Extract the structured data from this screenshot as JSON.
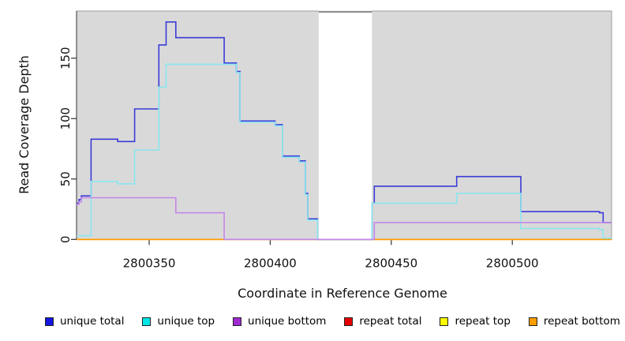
{
  "chart_data": {
    "type": "line",
    "subtype": "step-coverage",
    "title": "",
    "xlabel": "Coordinate in Reference Genome",
    "ylabel": "Read Coverage Depth",
    "xlim": [
      2800320,
      2800541
    ],
    "ylim": [
      0,
      189
    ],
    "xticks": [
      2800350,
      2800400,
      2800450,
      2800500
    ],
    "yticks": [
      0,
      50,
      100,
      150
    ],
    "grid": false,
    "legend_position": "bottom",
    "page_background": "#ffffff",
    "plot_background": "#d9d9d9",
    "plot_border_color": "#9b9b9b",
    "axis_color": "#333333",
    "mask_band": {
      "x_start": 2800420,
      "x_end": 2800442,
      "color": "#ffffff",
      "top_border": "#8f8f8f"
    },
    "series": [
      {
        "name": "unique total",
        "legend_color": "#1515e0",
        "line_color": "#3b3bd8",
        "steps": [
          [
            2800320,
            30
          ],
          [
            2800321,
            33
          ],
          [
            2800322,
            36
          ],
          [
            2800326,
            83
          ],
          [
            2800337,
            81
          ],
          [
            2800344,
            108
          ],
          [
            2800354,
            161
          ],
          [
            2800357,
            180
          ],
          [
            2800361,
            167
          ],
          [
            2800381,
            146
          ],
          [
            2800386,
            139
          ],
          [
            2800387.5,
            98
          ],
          [
            2800402,
            95
          ],
          [
            2800405,
            69
          ],
          [
            2800412,
            65
          ],
          [
            2800414.5,
            38
          ],
          [
            2800415.5,
            17
          ],
          [
            2800419.5,
            0
          ],
          [
            2800442,
            30
          ],
          [
            2800443,
            44
          ],
          [
            2800477,
            52
          ],
          [
            2800503.5,
            23
          ],
          [
            2800536,
            22
          ],
          [
            2800537.5,
            14
          ]
        ]
      },
      {
        "name": "unique top",
        "legend_color": "#00e6e6",
        "line_color": "#8ae6f0",
        "steps": [
          [
            2800320,
            3
          ],
          [
            2800326,
            48
          ],
          [
            2800337,
            46
          ],
          [
            2800344,
            74
          ],
          [
            2800354,
            126
          ],
          [
            2800357,
            145
          ],
          [
            2800386,
            138
          ],
          [
            2800387.5,
            97
          ],
          [
            2800402,
            94
          ],
          [
            2800405,
            68
          ],
          [
            2800412,
            64
          ],
          [
            2800414.5,
            37
          ],
          [
            2800415.5,
            16
          ],
          [
            2800419.5,
            0
          ],
          [
            2800442,
            30
          ],
          [
            2800477,
            38
          ],
          [
            2800503.5,
            9
          ],
          [
            2800536,
            8
          ],
          [
            2800537.5,
            1
          ]
        ]
      },
      {
        "name": "unique bottom",
        "legend_color": "#a02ad0",
        "line_color": "#c487e8",
        "steps": [
          [
            2800320,
            29
          ],
          [
            2800321,
            31
          ],
          [
            2800322,
            34.5
          ],
          [
            2800361,
            22
          ],
          [
            2800381,
            0
          ],
          [
            2800443,
            14
          ]
        ]
      },
      {
        "name": "repeat total",
        "legend_color": "#e60000",
        "line_color": "#cc4455",
        "steps": [
          [
            2800320,
            0
          ]
        ]
      },
      {
        "name": "repeat top",
        "legend_color": "#fafa00",
        "line_color": "#fafa00",
        "steps": [
          [
            2800320,
            0
          ]
        ]
      },
      {
        "name": "repeat bottom",
        "legend_color": "#ff9d00",
        "line_color": "#ff9d00",
        "steps": [
          [
            2800320,
            0
          ]
        ]
      }
    ],
    "draw_order": [
      3,
      4,
      5,
      0,
      1,
      2
    ]
  }
}
